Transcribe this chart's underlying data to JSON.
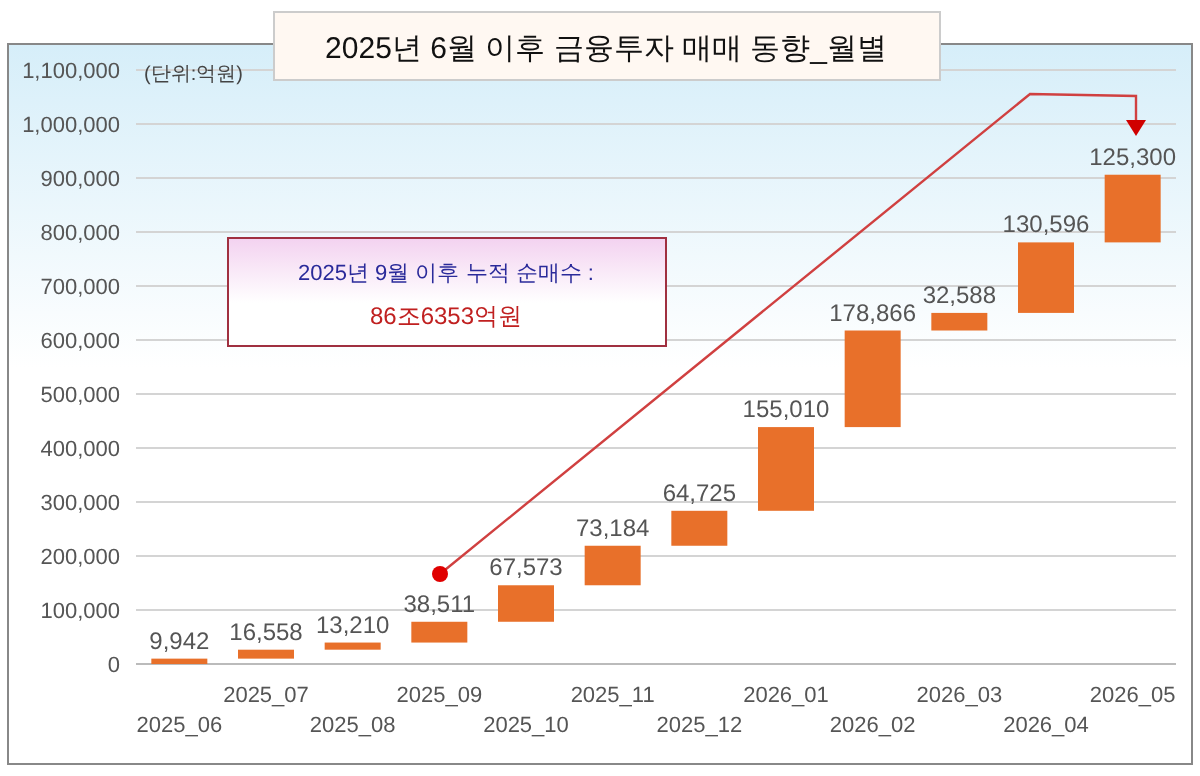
{
  "chart_data": {
    "type": "bar",
    "title": "2025년 6월 이후 금융투자  매매 동향_월별",
    "categories": [
      "2025_06",
      "2025_07",
      "2025_08",
      "2025_09",
      "2025_10",
      "2025_11",
      "2025_12",
      "2026_01",
      "2026_02",
      "2026_03",
      "2026_04",
      "2026_05"
    ],
    "values": [
      9942,
      16558,
      13210,
      38511,
      67573,
      73184,
      64725,
      155010,
      178866,
      32588,
      130596,
      125300
    ],
    "base": [
      0,
      9942,
      26500,
      39710,
      78221,
      145794,
      218978,
      283703,
      438713,
      617579,
      650167,
      780763
    ],
    "color": "#e8702a",
    "ylim": [
      0,
      1100000
    ],
    "yticks": [
      {
        "value": 0,
        "label": "0"
      },
      {
        "value": 100000,
        "label": "100,000"
      },
      {
        "value": 200000,
        "label": "200,000"
      },
      {
        "value": 300000,
        "label": "300,000"
      },
      {
        "value": 400000,
        "label": "400,000"
      },
      {
        "value": 500000,
        "label": "500,000"
      },
      {
        "value": 600000,
        "label": "600,000"
      },
      {
        "value": 700000,
        "label": "700,000"
      },
      {
        "value": 800000,
        "label": "800,000"
      },
      {
        "value": 900000,
        "label": "900,000"
      },
      {
        "value": 1000000,
        "label": "1,000,000"
      },
      {
        "value": 1100000,
        "label": "1,100,000"
      }
    ],
    "grid": "y",
    "value_labels": [
      "9,942",
      "16,558",
      "13,210",
      "38,511",
      "67,573",
      "73,184",
      "64,725",
      "155,010",
      "178,866",
      "32,588",
      "130,596",
      "125,300"
    ],
    "annotations": [
      "(단위:억원)",
      "2025년 9월 이후 누적 순매수 :",
      "86조6353억원"
    ]
  }
}
